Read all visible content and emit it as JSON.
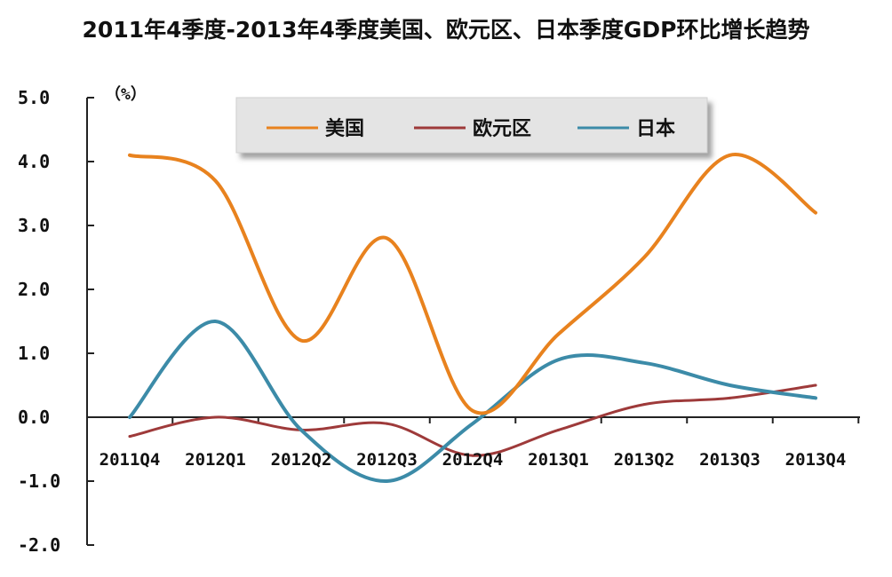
{
  "chart_data": {
    "type": "line",
    "title": "2011年4季度-2013年4季度美国、欧元区、日本季度GDP环比增长趋势",
    "unit_label": "（%）",
    "categories": [
      "2011Q4",
      "2012Q1",
      "2012Q2",
      "2012Q3",
      "2012Q4",
      "2013Q1",
      "2013Q2",
      "2013Q3",
      "2013Q4"
    ],
    "ylim": [
      -2.0,
      5.0
    ],
    "yticks": [
      "5.0",
      "4.0",
      "3.0",
      "2.0",
      "1.0",
      "0.0",
      "-1.0",
      "-2.0"
    ],
    "ytick_values": [
      5,
      4,
      3,
      2,
      1,
      0,
      -1,
      -2
    ],
    "grid": false,
    "legend_position": "top-center",
    "series": [
      {
        "name": "美国",
        "color": "#E8821E",
        "values": [
          4.1,
          3.7,
          1.2,
          2.8,
          0.1,
          1.3,
          2.5,
          4.1,
          3.2
        ]
      },
      {
        "name": "欧元区",
        "color": "#9E3A3A",
        "values": [
          -0.3,
          0.0,
          -0.2,
          -0.1,
          -0.6,
          -0.2,
          0.2,
          0.3,
          0.5
        ]
      },
      {
        "name": "日本",
        "color": "#3C8BA8",
        "values": [
          0.0,
          1.5,
          -0.2,
          -1.0,
          -0.1,
          0.9,
          0.85,
          0.5,
          0.3
        ]
      }
    ]
  }
}
